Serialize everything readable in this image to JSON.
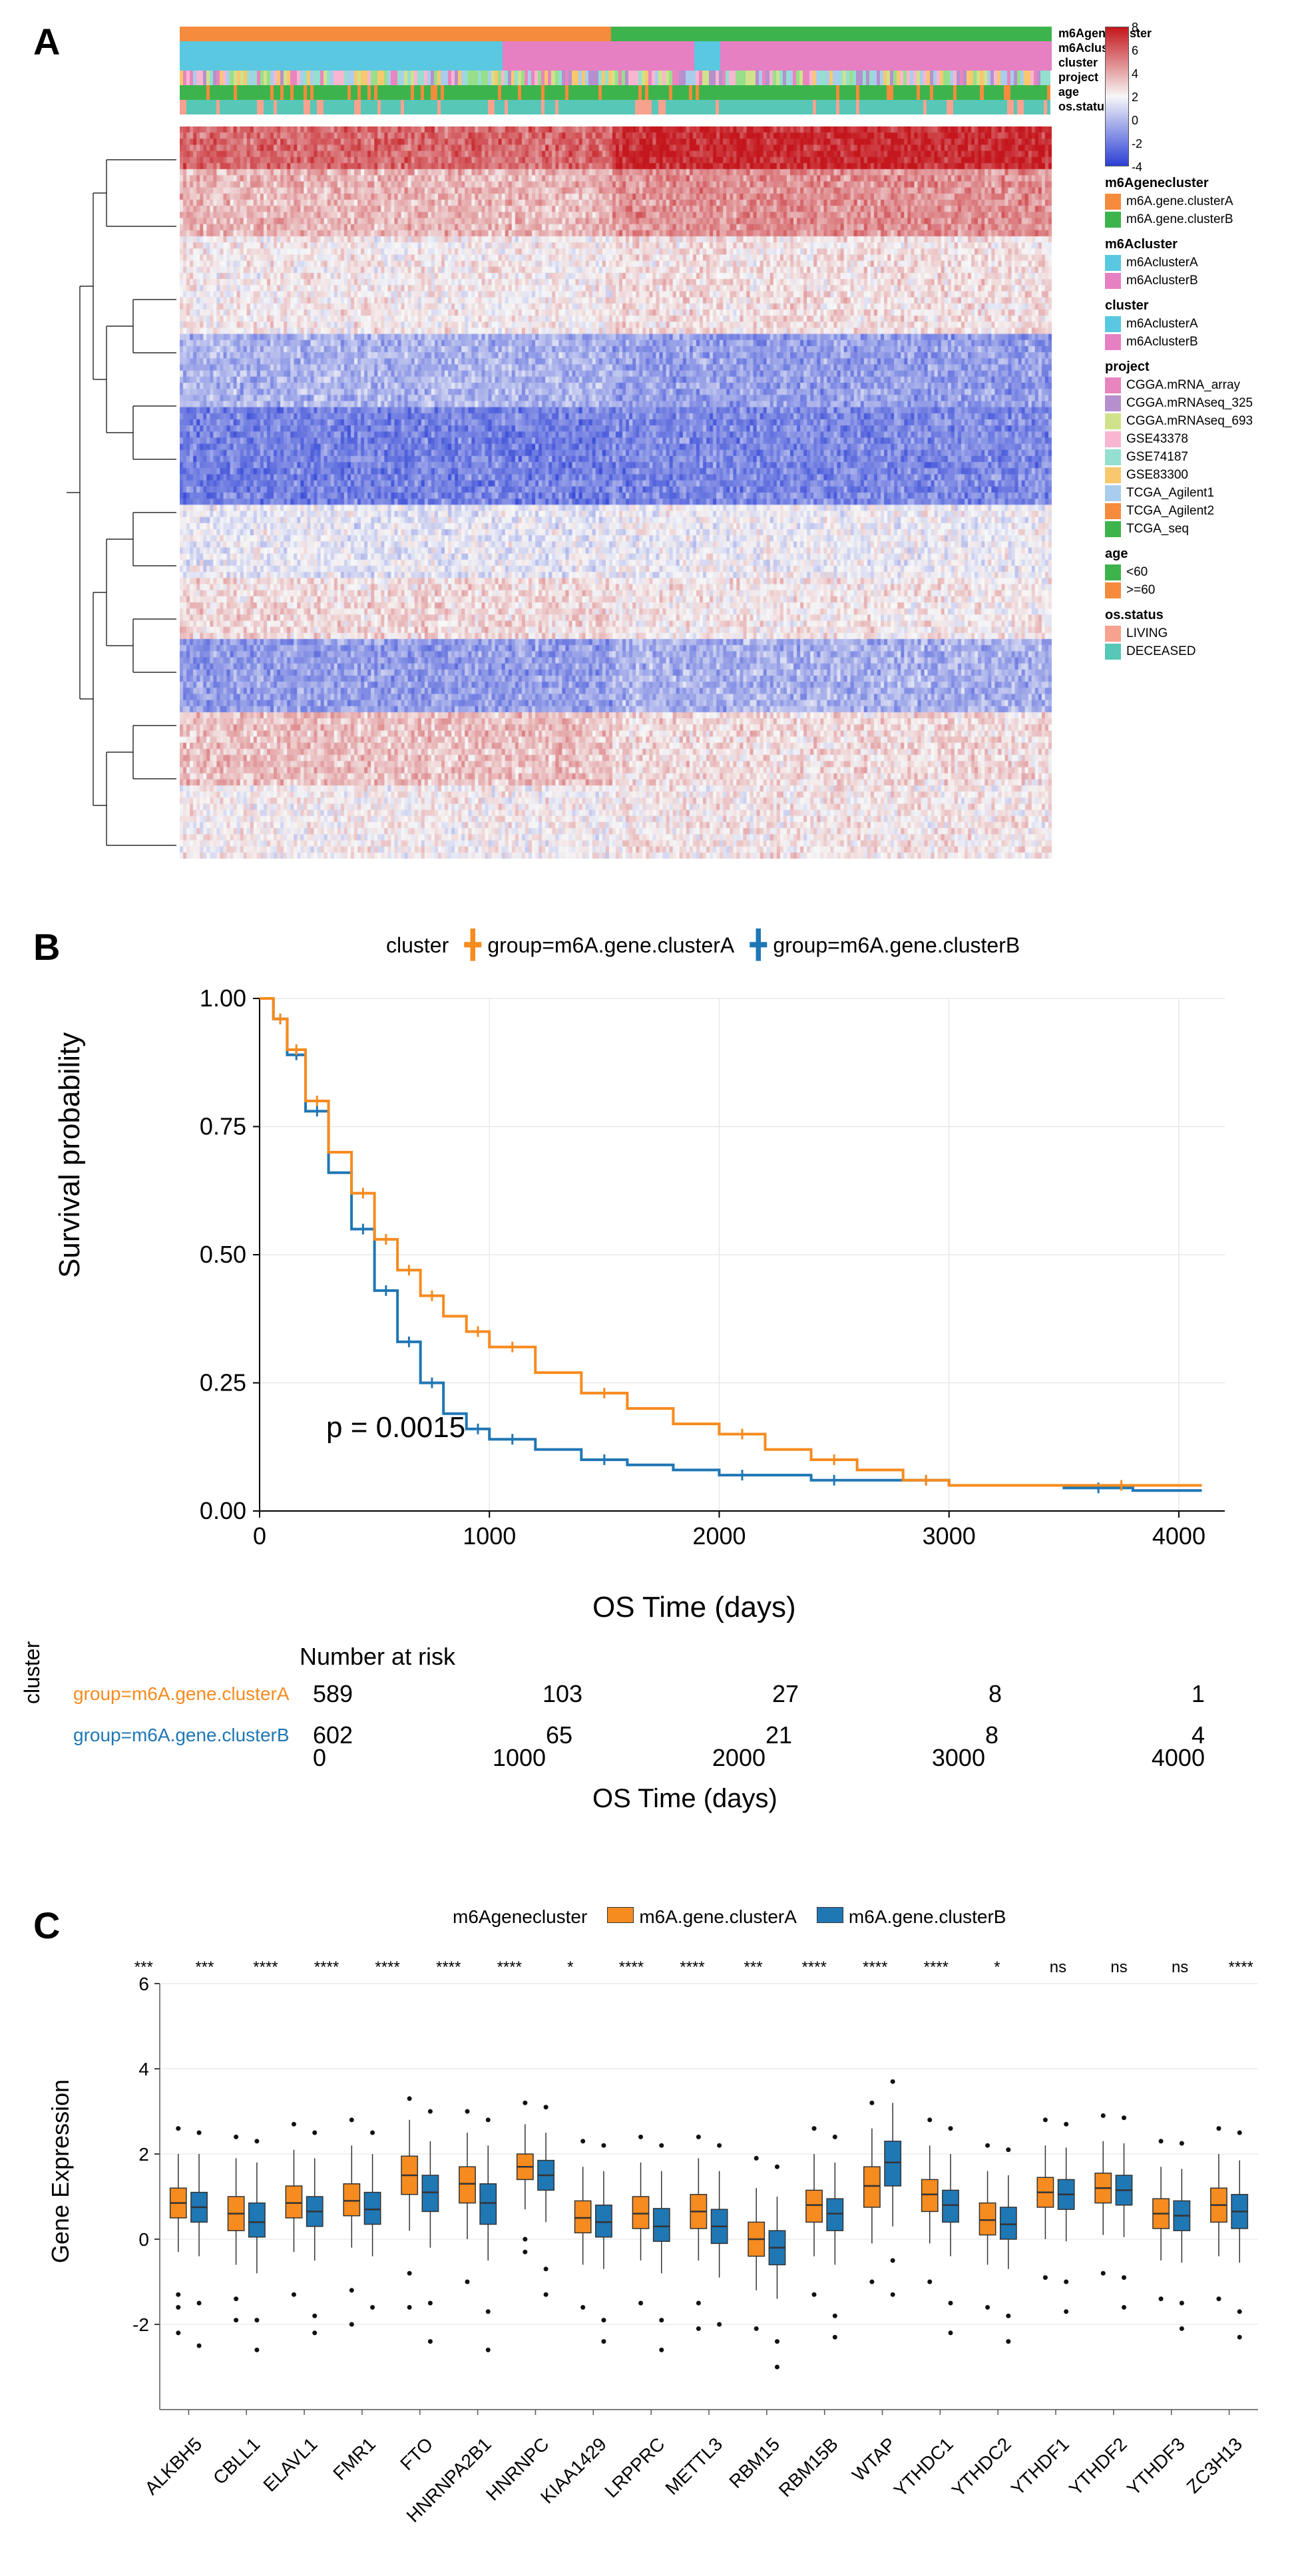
{
  "panelA": {
    "label": "A",
    "annotation_tracks": [
      {
        "name": "m6Agenecluster",
        "segments": [
          {
            "color": "#f58b3c",
            "frac": 0.495
          },
          {
            "color": "#3cb44b",
            "frac": 0.505
          }
        ]
      },
      {
        "name": "m6Acluster",
        "segments": [
          {
            "color": "#5ac8e1",
            "frac": 0.37
          },
          {
            "color": "#e77fc3",
            "frac": 0.22
          },
          {
            "color": "#5ac8e1",
            "frac": 0.03
          },
          {
            "color": "#e77fc3",
            "frac": 0.38
          }
        ]
      },
      {
        "name": "cluster",
        "segments": [
          {
            "color": "#5ac8e1",
            "frac": 0.37
          },
          {
            "color": "#e77fc3",
            "frac": 0.22
          },
          {
            "color": "#5ac8e1",
            "frac": 0.03
          },
          {
            "color": "#e77fc3",
            "frac": 0.38
          }
        ]
      },
      {
        "name": "project",
        "stochastic": true,
        "palette": [
          "#e985be",
          "#b590cd",
          "#d0e28b",
          "#f8b6d1",
          "#94dfd0",
          "#f7c86e",
          "#a9cdec",
          "#98df8a"
        ],
        "seed": 3
      },
      {
        "name": "age",
        "stochastic": true,
        "palette": [
          "#3cb44b",
          "#f58b3c"
        ],
        "weights": [
          0.82,
          0.18
        ],
        "seed": 5
      },
      {
        "name": "os.status",
        "stochastic": true,
        "palette": [
          "#f7a28f",
          "#57c7b7"
        ],
        "weights": [
          0.18,
          0.82
        ],
        "seed": 7
      }
    ],
    "heatmap": {
      "rows": 120,
      "cols": 260,
      "color_low": "#2b3fd6",
      "color_mid": "#f7f7f7",
      "color_high": "#c4161c",
      "row_bands": [
        {
          "from": 0,
          "to": 7,
          "mu": 3.2,
          "shift": 1.4
        },
        {
          "from": 7,
          "to": 18,
          "mu": 1.4,
          "shift": 0.9
        },
        {
          "from": 18,
          "to": 34,
          "mu": 0.2,
          "shift": 0.3
        },
        {
          "from": 34,
          "to": 46,
          "mu": -1.8,
          "shift": -0.6
        },
        {
          "from": 46,
          "to": 62,
          "mu": -3.2,
          "shift": 0.2
        },
        {
          "from": 62,
          "to": 74,
          "mu": -0.4,
          "shift": 0.2
        },
        {
          "from": 74,
          "to": 84,
          "mu": 0.6,
          "shift": -0.3
        },
        {
          "from": 84,
          "to": 96,
          "mu": -2.4,
          "shift": 0.5
        },
        {
          "from": 96,
          "to": 108,
          "mu": 1.2,
          "shift": -0.6
        },
        {
          "from": 108,
          "to": 120,
          "mu": 0.1,
          "shift": 0.2
        }
      ],
      "scale_ticks": [
        "8",
        "6",
        "4",
        "2",
        "0",
        "-2",
        "-4"
      ]
    },
    "legends": [
      {
        "name": "m6Agenecluster",
        "items": [
          {
            "label": "m6A.gene.clusterA",
            "color": "#f58b3c"
          },
          {
            "label": "m6A.gene.clusterB",
            "color": "#3cb44b"
          }
        ]
      },
      {
        "name": "m6Acluster",
        "items": [
          {
            "label": "m6AclusterA",
            "color": "#5ac8e1"
          },
          {
            "label": "m6AclusterB",
            "color": "#e77fc3"
          }
        ]
      },
      {
        "name": "cluster",
        "items": [
          {
            "label": "m6AclusterA",
            "color": "#5ac8e1"
          },
          {
            "label": "m6AclusterB",
            "color": "#e77fc3"
          }
        ]
      },
      {
        "name": "project",
        "items": [
          {
            "label": "CGGA.mRNA_array",
            "color": "#e985be"
          },
          {
            "label": "CGGA.mRNAseq_325",
            "color": "#b590cd"
          },
          {
            "label": "CGGA.mRNAseq_693",
            "color": "#d0e28b"
          },
          {
            "label": "GSE43378",
            "color": "#f8b6d1"
          },
          {
            "label": "GSE74187",
            "color": "#94dfd0"
          },
          {
            "label": "GSE83300",
            "color": "#f7c86e"
          },
          {
            "label": "TCGA_Agilent1",
            "color": "#a9cdec"
          },
          {
            "label": "TCGA_Agilent2",
            "color": "#f58b3c"
          },
          {
            "label": "TCGA_seq",
            "color": "#3cb44b"
          }
        ]
      },
      {
        "name": "age",
        "items": [
          {
            "label": "<60",
            "color": "#3cb44b"
          },
          {
            "label": ">=60",
            "color": "#f58b3c"
          }
        ]
      },
      {
        "name": "os.status",
        "items": [
          {
            "label": "LIVING",
            "color": "#f7a28f"
          },
          {
            "label": "DECEASED",
            "color": "#57c7b7"
          }
        ]
      }
    ]
  },
  "panelB": {
    "label": "B",
    "legend_title": "cluster",
    "series": [
      {
        "name": "group=m6A.gene.clusterA",
        "color": "#f68b1f"
      },
      {
        "name": "group=m6A.gene.clusterB",
        "color": "#1f77b4"
      }
    ],
    "xlabel": "OS Time (days)",
    "ylabel": "Survival probability",
    "xlim": [
      0,
      4200
    ],
    "ylim": [
      0,
      1
    ],
    "xticks": [
      0,
      1000,
      2000,
      3000,
      4000
    ],
    "yticks": [
      0,
      0.25,
      0.5,
      0.75,
      1.0
    ],
    "pvalue": "p = 0.0015",
    "curveA": [
      [
        0,
        1.0
      ],
      [
        60,
        0.96
      ],
      [
        120,
        0.9
      ],
      [
        200,
        0.8
      ],
      [
        300,
        0.7
      ],
      [
        400,
        0.62
      ],
      [
        500,
        0.53
      ],
      [
        600,
        0.47
      ],
      [
        700,
        0.42
      ],
      [
        800,
        0.38
      ],
      [
        900,
        0.35
      ],
      [
        1000,
        0.32
      ],
      [
        1200,
        0.27
      ],
      [
        1400,
        0.23
      ],
      [
        1600,
        0.2
      ],
      [
        1800,
        0.17
      ],
      [
        2000,
        0.15
      ],
      [
        2200,
        0.12
      ],
      [
        2400,
        0.1
      ],
      [
        2600,
        0.08
      ],
      [
        2800,
        0.06
      ],
      [
        3000,
        0.05
      ],
      [
        3500,
        0.05
      ],
      [
        4000,
        0.05
      ],
      [
        4100,
        0.05
      ]
    ],
    "curveB": [
      [
        0,
        1.0
      ],
      [
        60,
        0.96
      ],
      [
        120,
        0.89
      ],
      [
        200,
        0.78
      ],
      [
        300,
        0.66
      ],
      [
        400,
        0.55
      ],
      [
        500,
        0.43
      ],
      [
        600,
        0.33
      ],
      [
        700,
        0.25
      ],
      [
        800,
        0.19
      ],
      [
        900,
        0.16
      ],
      [
        1000,
        0.14
      ],
      [
        1200,
        0.12
      ],
      [
        1400,
        0.1
      ],
      [
        1600,
        0.09
      ],
      [
        1800,
        0.08
      ],
      [
        2000,
        0.07
      ],
      [
        2200,
        0.07
      ],
      [
        2400,
        0.06
      ],
      [
        2600,
        0.06
      ],
      [
        2800,
        0.06
      ],
      [
        3000,
        0.05
      ],
      [
        3500,
        0.045
      ],
      [
        3800,
        0.04
      ],
      [
        4100,
        0.04
      ]
    ],
    "risk_title": "Number at risk",
    "risk_rows": [
      {
        "label": "group=m6A.gene.clusterA",
        "color": "#f68b1f",
        "vals": [
          589,
          103,
          27,
          8,
          1
        ]
      },
      {
        "label": "group=m6A.gene.clusterB",
        "color": "#1f77b4",
        "vals": [
          602,
          65,
          21,
          8,
          4
        ]
      }
    ],
    "risk_xlabel": "OS Time (days)",
    "risk_ylabel": "cluster"
  },
  "panelC": {
    "label": "C",
    "legend_title": "m6Agenecluster",
    "series": [
      {
        "name": "m6A.gene.clusterA",
        "color": "#f68b1f"
      },
      {
        "name": "m6A.gene.clusterB",
        "color": "#1f77b4"
      }
    ],
    "ylabel": "Gene Expression",
    "ylim": [
      -4,
      6
    ],
    "yticks": [
      -2,
      0,
      2,
      4,
      6
    ],
    "genes": [
      "ALKBH5",
      "CBLL1",
      "ELAVL1",
      "FMR1",
      "FTO",
      "HNRNPA2B1",
      "HNRNPC",
      "KIAA1429",
      "LRPPRC",
      "METTL3",
      "RBM15",
      "RBM15B",
      "WTAP",
      "YTHDC1",
      "YTHDC2",
      "YTHDF1",
      "YTHDF2",
      "YTHDF3",
      "ZC3H13"
    ],
    "sig": [
      "***",
      "***",
      "****",
      "****",
      "****",
      "****",
      "****",
      "*",
      "****",
      "****",
      "***",
      "****",
      "****",
      "****",
      "*",
      "ns",
      "ns",
      "ns",
      "****"
    ],
    "boxes": [
      {
        "A": {
          "q1": 0.5,
          "med": 0.85,
          "q3": 1.2,
          "lo": -0.3,
          "hi": 2.0,
          "out": [
            -1.6,
            -1.3,
            -2.2,
            2.6
          ]
        },
        "B": {
          "q1": 0.4,
          "med": 0.75,
          "q3": 1.1,
          "lo": -0.4,
          "hi": 2.0,
          "out": [
            -1.5,
            -2.5,
            2.5
          ]
        }
      },
      {
        "A": {
          "q1": 0.2,
          "med": 0.6,
          "q3": 1.0,
          "lo": -0.6,
          "hi": 1.9,
          "out": [
            -1.4,
            -1.9,
            2.4
          ]
        },
        "B": {
          "q1": 0.05,
          "med": 0.4,
          "q3": 0.85,
          "lo": -0.8,
          "hi": 1.8,
          "out": [
            -1.9,
            -2.6,
            2.3
          ]
        }
      },
      {
        "A": {
          "q1": 0.5,
          "med": 0.85,
          "q3": 1.25,
          "lo": -0.3,
          "hi": 2.1,
          "out": [
            -1.3,
            2.7
          ]
        },
        "B": {
          "q1": 0.3,
          "med": 0.65,
          "q3": 1.0,
          "lo": -0.5,
          "hi": 1.9,
          "out": [
            -1.8,
            -2.2,
            2.5
          ]
        }
      },
      {
        "A": {
          "q1": 0.55,
          "med": 0.9,
          "q3": 1.3,
          "lo": -0.2,
          "hi": 2.2,
          "out": [
            -1.2,
            2.8,
            -2.0
          ]
        },
        "B": {
          "q1": 0.35,
          "med": 0.7,
          "q3": 1.1,
          "lo": -0.4,
          "hi": 2.0,
          "out": [
            -1.6,
            2.5
          ]
        }
      },
      {
        "A": {
          "q1": 1.05,
          "med": 1.5,
          "q3": 1.95,
          "lo": 0.2,
          "hi": 2.8,
          "out": [
            -0.8,
            3.3,
            -1.6
          ]
        },
        "B": {
          "q1": 0.65,
          "med": 1.1,
          "q3": 1.5,
          "lo": -0.2,
          "hi": 2.3,
          "out": [
            -1.5,
            3.0,
            -2.4
          ]
        }
      },
      {
        "A": {
          "q1": 0.85,
          "med": 1.3,
          "q3": 1.7,
          "lo": 0.0,
          "hi": 2.5,
          "out": [
            -1.0,
            3.0
          ]
        },
        "B": {
          "q1": 0.35,
          "med": 0.85,
          "q3": 1.3,
          "lo": -0.5,
          "hi": 2.2,
          "out": [
            -1.7,
            -2.6,
            2.8
          ]
        }
      },
      {
        "A": {
          "q1": 1.4,
          "med": 1.7,
          "q3": 2.0,
          "lo": 0.7,
          "hi": 2.7,
          "out": [
            -0.3,
            3.2,
            0.0
          ]
        },
        "B": {
          "q1": 1.15,
          "med": 1.5,
          "q3": 1.85,
          "lo": 0.4,
          "hi": 2.5,
          "out": [
            -0.7,
            -1.3,
            3.1
          ]
        }
      },
      {
        "A": {
          "q1": 0.15,
          "med": 0.5,
          "q3": 0.9,
          "lo": -0.6,
          "hi": 1.7,
          "out": [
            -1.6,
            2.3
          ]
        },
        "B": {
          "q1": 0.05,
          "med": 0.4,
          "q3": 0.8,
          "lo": -0.7,
          "hi": 1.6,
          "out": [
            -1.9,
            2.2,
            -2.4
          ]
        }
      },
      {
        "A": {
          "q1": 0.25,
          "med": 0.6,
          "q3": 1.0,
          "lo": -0.5,
          "hi": 1.8,
          "out": [
            -1.5,
            2.4
          ]
        },
        "B": {
          "q1": -0.05,
          "med": 0.3,
          "q3": 0.72,
          "lo": -0.8,
          "hi": 1.6,
          "out": [
            -1.9,
            2.2,
            -2.6
          ]
        }
      },
      {
        "A": {
          "q1": 0.25,
          "med": 0.65,
          "q3": 1.05,
          "lo": -0.5,
          "hi": 1.9,
          "out": [
            -1.5,
            2.4,
            -2.1
          ]
        },
        "B": {
          "q1": -0.1,
          "med": 0.3,
          "q3": 0.7,
          "lo": -0.9,
          "hi": 1.6,
          "out": [
            -2.0,
            2.2
          ]
        }
      },
      {
        "A": {
          "q1": -0.4,
          "med": 0.0,
          "q3": 0.4,
          "lo": -1.2,
          "hi": 1.2,
          "out": [
            -2.1,
            1.9
          ]
        },
        "B": {
          "q1": -0.6,
          "med": -0.2,
          "q3": 0.2,
          "lo": -1.4,
          "hi": 1.0,
          "out": [
            -2.4,
            1.7,
            -3.0
          ]
        }
      },
      {
        "A": {
          "q1": 0.4,
          "med": 0.8,
          "q3": 1.15,
          "lo": -0.4,
          "hi": 2.0,
          "out": [
            -1.3,
            2.6
          ]
        },
        "B": {
          "q1": 0.2,
          "med": 0.6,
          "q3": 0.95,
          "lo": -0.6,
          "hi": 1.8,
          "out": [
            -1.8,
            2.4,
            -2.3
          ]
        }
      },
      {
        "A": {
          "q1": 0.75,
          "med": 1.25,
          "q3": 1.7,
          "lo": -0.1,
          "hi": 2.6,
          "out": [
            -1.0,
            3.2
          ]
        },
        "B": {
          "q1": 1.25,
          "med": 1.8,
          "q3": 2.3,
          "lo": 0.3,
          "hi": 3.2,
          "out": [
            -0.5,
            3.7,
            -1.3
          ]
        }
      },
      {
        "A": {
          "q1": 0.65,
          "med": 1.05,
          "q3": 1.4,
          "lo": -0.1,
          "hi": 2.2,
          "out": [
            -1.0,
            2.8
          ]
        },
        "B": {
          "q1": 0.4,
          "med": 0.8,
          "q3": 1.15,
          "lo": -0.4,
          "hi": 2.0,
          "out": [
            -1.5,
            2.6,
            -2.2
          ]
        }
      },
      {
        "A": {
          "q1": 0.1,
          "med": 0.45,
          "q3": 0.85,
          "lo": -0.6,
          "hi": 1.6,
          "out": [
            -1.6,
            2.2
          ]
        },
        "B": {
          "q1": 0.0,
          "med": 0.35,
          "q3": 0.75,
          "lo": -0.7,
          "hi": 1.5,
          "out": [
            -1.8,
            2.1,
            -2.4
          ]
        }
      },
      {
        "A": {
          "q1": 0.75,
          "med": 1.1,
          "q3": 1.45,
          "lo": 0.0,
          "hi": 2.2,
          "out": [
            -0.9,
            2.8
          ]
        },
        "B": {
          "q1": 0.7,
          "med": 1.05,
          "q3": 1.4,
          "lo": -0.05,
          "hi": 2.15,
          "out": [
            -1.0,
            2.7,
            -1.7
          ]
        }
      },
      {
        "A": {
          "q1": 0.85,
          "med": 1.2,
          "q3": 1.55,
          "lo": 0.1,
          "hi": 2.3,
          "out": [
            -0.8,
            2.9
          ]
        },
        "B": {
          "q1": 0.8,
          "med": 1.15,
          "q3": 1.5,
          "lo": 0.05,
          "hi": 2.25,
          "out": [
            -0.9,
            2.85,
            -1.6
          ]
        }
      },
      {
        "A": {
          "q1": 0.25,
          "med": 0.6,
          "q3": 0.95,
          "lo": -0.5,
          "hi": 1.7,
          "out": [
            -1.4,
            2.3
          ]
        },
        "B": {
          "q1": 0.2,
          "med": 0.55,
          "q3": 0.9,
          "lo": -0.55,
          "hi": 1.65,
          "out": [
            -1.5,
            2.25,
            -2.1
          ]
        }
      },
      {
        "A": {
          "q1": 0.4,
          "med": 0.8,
          "q3": 1.2,
          "lo": -0.4,
          "hi": 2.0,
          "out": [
            -1.4,
            2.6
          ]
        },
        "B": {
          "q1": 0.25,
          "med": 0.65,
          "q3": 1.05,
          "lo": -0.55,
          "hi": 1.85,
          "out": [
            -1.7,
            2.5,
            -2.3
          ]
        }
      }
    ]
  }
}
